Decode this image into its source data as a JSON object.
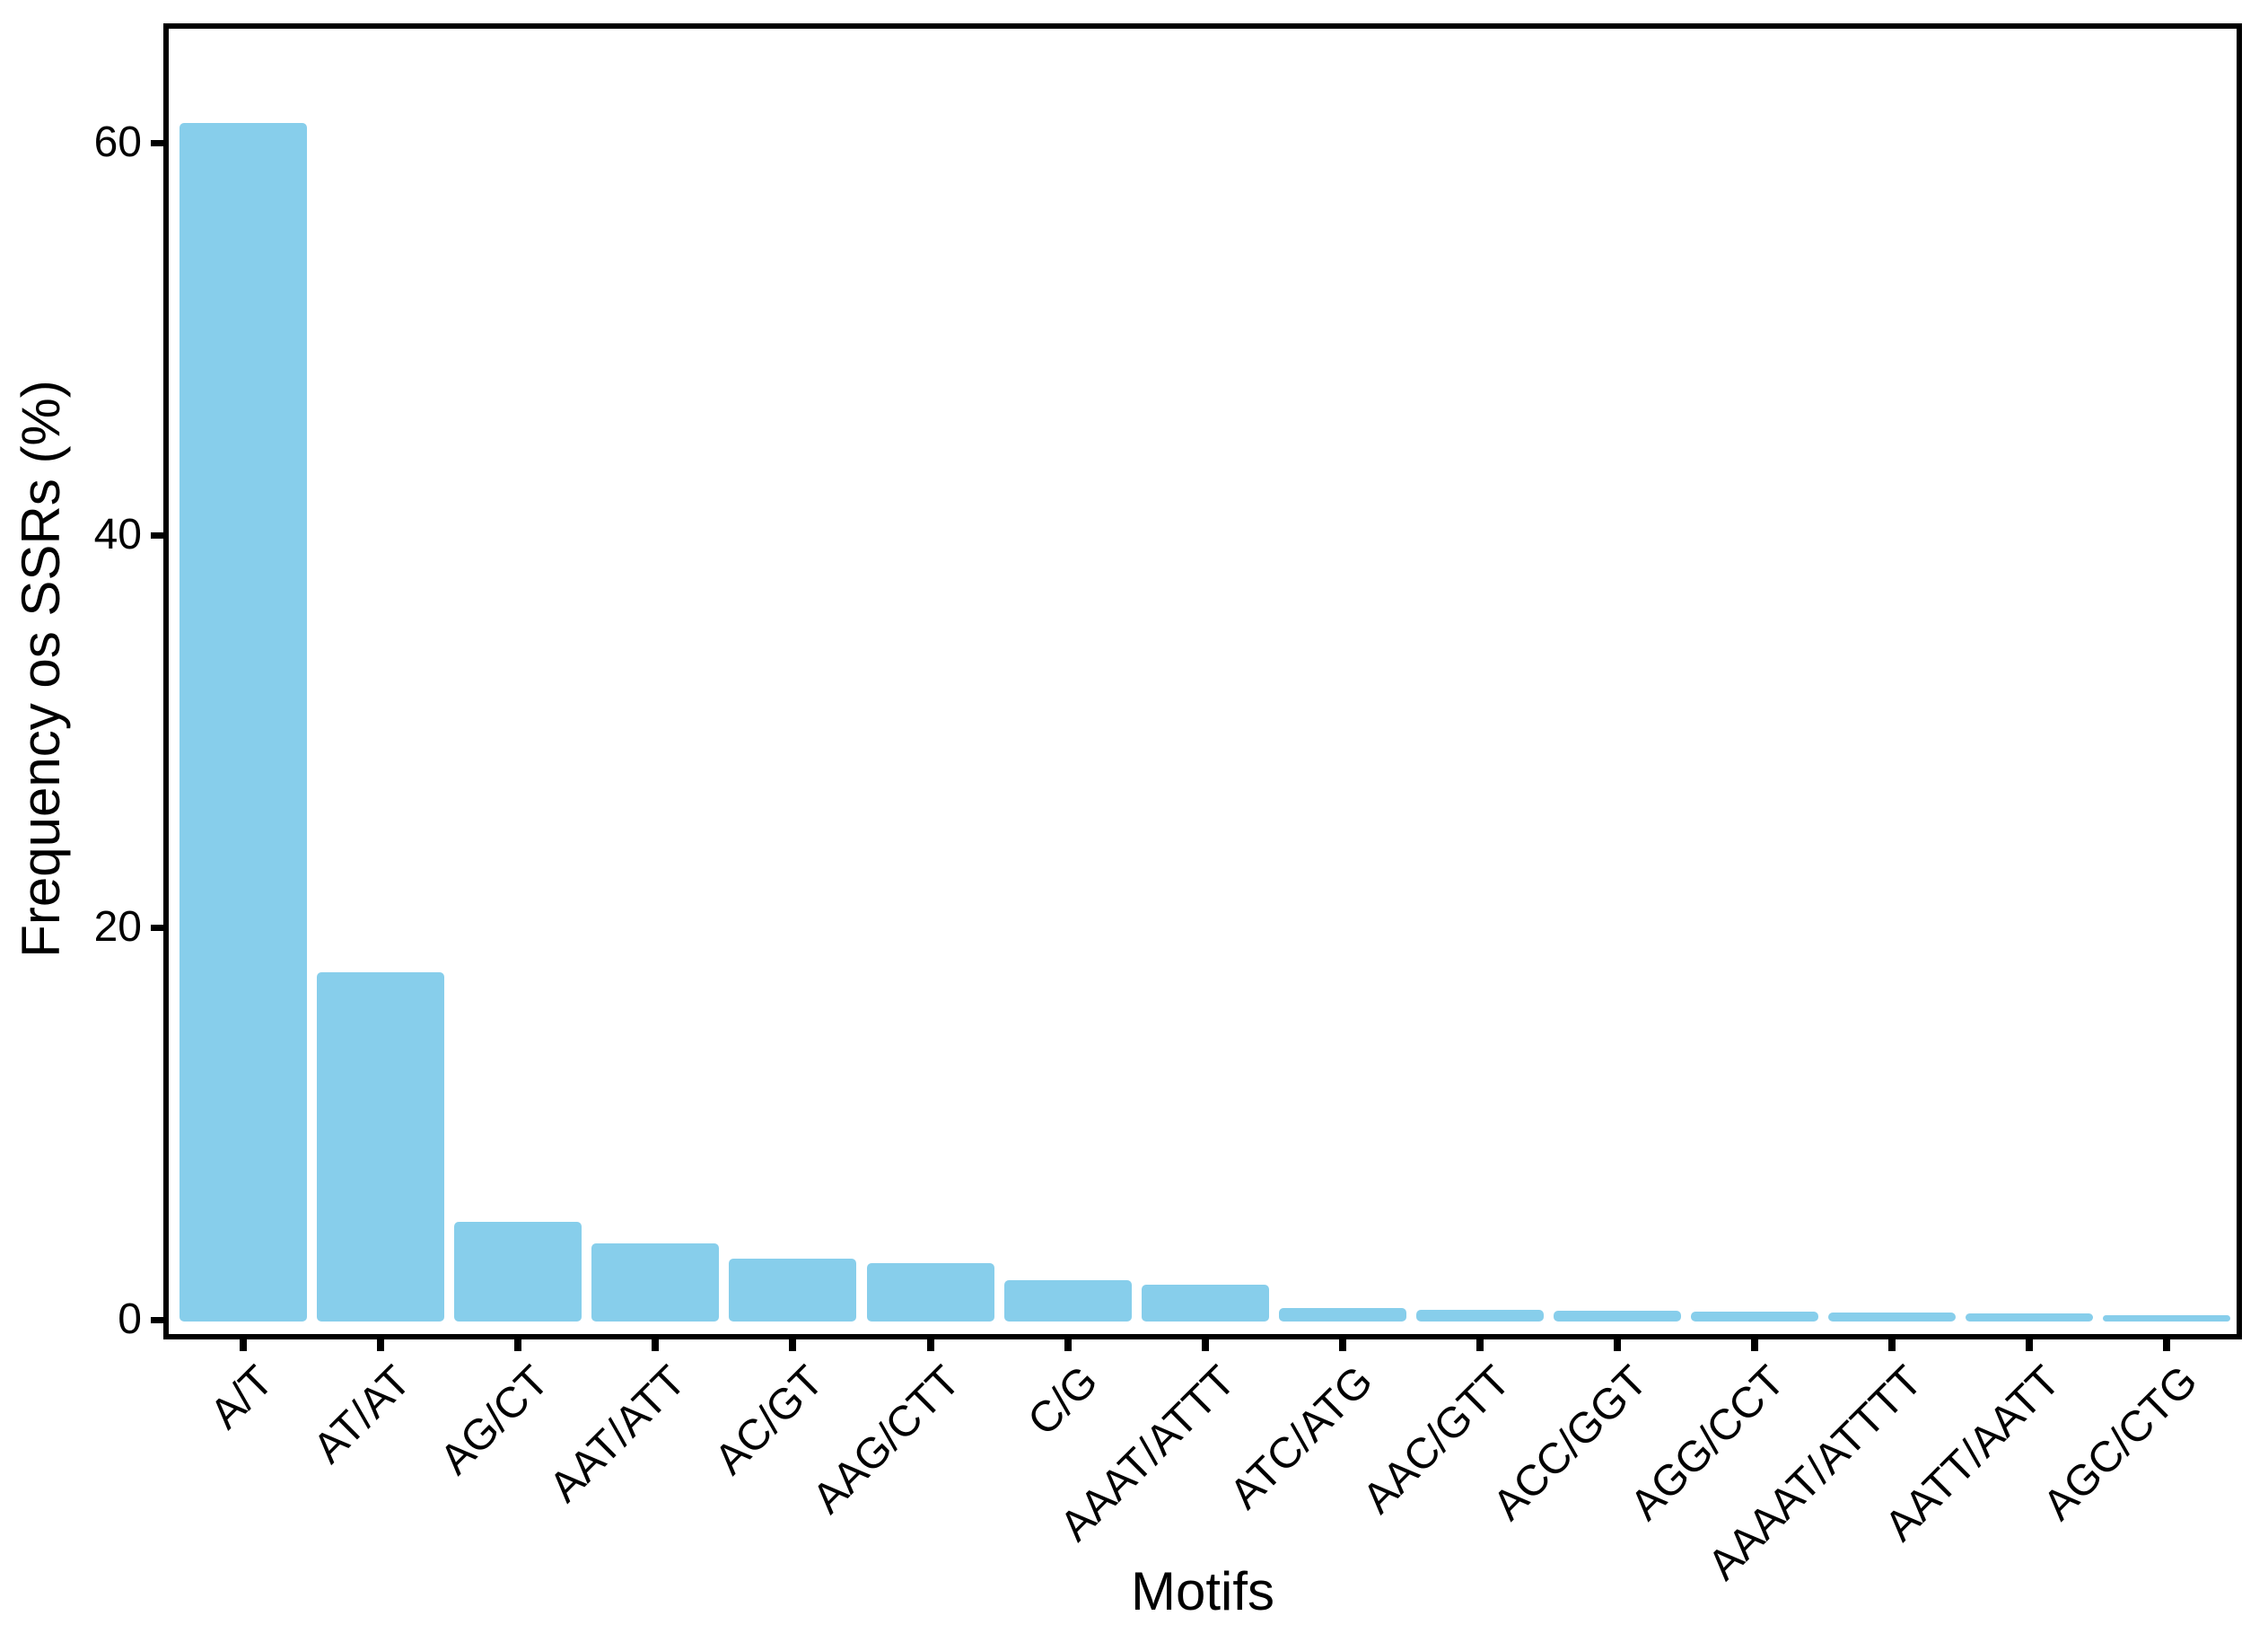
{
  "figure": {
    "background_color": "#ffffff",
    "panel_border_color": "#000000",
    "tick_color": "#000000",
    "text_color": "#000000"
  },
  "chart_data": {
    "type": "bar",
    "title": "",
    "xlabel": "Motifs",
    "ylabel": "Frequency os SSRs (%)",
    "categories": [
      "A/T",
      "AT/AT",
      "AG/CT",
      "AAT/ATT",
      "AC/GT",
      "AAG/CTT",
      "C/G",
      "AAAT/ATTT",
      "ATC/ATG",
      "AAC/GTT",
      "ACC/GGT",
      "AGG/CCT",
      "AAAAT/ATTTT",
      "AATT/AATT",
      "AGC/CTG"
    ],
    "values": [
      61.0,
      17.7,
      5.0,
      3.9,
      3.1,
      2.9,
      2.0,
      1.8,
      0.6,
      0.5,
      0.45,
      0.4,
      0.37,
      0.3,
      0.25
    ],
    "y_ticks": [
      0,
      20,
      40,
      60
    ],
    "ylim": [
      0,
      66
    ],
    "bar_color": "#87CEEB",
    "grid": "off",
    "legend": "none",
    "x_tick_angle_degrees": 45
  }
}
